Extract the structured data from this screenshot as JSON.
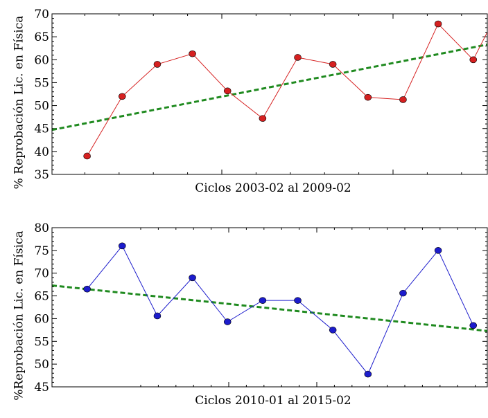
{
  "colors": {
    "panel1_series": "#d62020",
    "panel2_series": "#1c1ccc",
    "trend": "#1f8a1f",
    "axis": "#000000"
  },
  "chart_data": [
    {
      "type": "line",
      "xlabel": "Ciclos 2003-02 al 2009-02",
      "ylabel": "% Reprobación Lic. en Física",
      "ylim": [
        35,
        70
      ],
      "yticks": [
        35,
        40,
        45,
        50,
        55,
        60,
        65,
        70
      ],
      "ytick_labels": [
        "35",
        "40",
        "45",
        "50",
        "55",
        "60",
        "65",
        "70"
      ],
      "xlim": [
        0,
        12.4
      ],
      "grid": false,
      "series": [
        {
          "kind": "data",
          "x": [
            1,
            2,
            3,
            4,
            5,
            6,
            7,
            8,
            9,
            10,
            11,
            12,
            12.6
          ],
          "values": [
            39,
            52,
            59,
            61.3,
            53.2,
            47.2,
            60.5,
            59,
            51.8,
            51.3,
            67.8,
            60,
            69
          ]
        },
        {
          "kind": "trend",
          "x": [
            0,
            12.4
          ],
          "values": [
            44.7,
            63.3
          ]
        }
      ]
    },
    {
      "type": "line",
      "xlabel": "Ciclos 2010-01 al 2015-02",
      "ylabel": "%Reprobación Lic. en Física",
      "ylim": [
        45,
        80
      ],
      "yticks": [
        45,
        50,
        55,
        60,
        65,
        70,
        75,
        80
      ],
      "ytick_labels": [
        "45",
        "50",
        "55",
        "60",
        "65",
        "70",
        "75",
        "80"
      ],
      "xlim": [
        0,
        12.4
      ],
      "grid": false,
      "series": [
        {
          "kind": "data",
          "x": [
            1,
            2,
            3,
            4,
            5,
            6,
            7,
            8,
            9,
            10,
            11,
            12
          ],
          "values": [
            66.5,
            76,
            60.6,
            69,
            59.3,
            64,
            64,
            57.5,
            47.8,
            65.6,
            75,
            58.5
          ]
        },
        {
          "kind": "trend",
          "x": [
            0,
            12.4
          ],
          "values": [
            67.3,
            57.3
          ]
        }
      ]
    }
  ]
}
